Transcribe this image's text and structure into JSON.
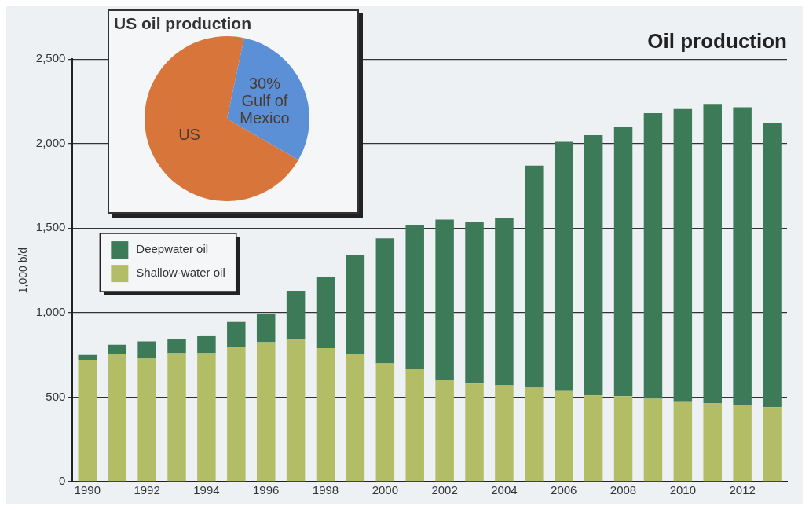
{
  "chart_data": [
    {
      "type": "bar",
      "title": "Oil production",
      "ylabel": "1,000 b/d",
      "stacked": true,
      "grid": "y",
      "legend": "left",
      "categories": [
        "1990",
        null,
        "1992",
        null,
        "1994",
        null,
        "1996",
        null,
        "1998",
        null,
        "2000",
        null,
        "2002",
        null,
        "2004",
        null,
        "2006",
        null,
        "2008",
        null,
        "2010",
        null,
        "2012",
        null
      ],
      "series": [
        {
          "name": "Shallow-water oil",
          "color": "#b3bd66",
          "values": [
            720,
            755,
            735,
            760,
            760,
            795,
            825,
            845,
            790,
            755,
            700,
            665,
            600,
            580,
            570,
            555,
            540,
            510,
            505,
            490,
            475,
            465,
            455,
            440
          ]
        },
        {
          "name": "Deepwater oil",
          "color": "#3d7a58",
          "values": [
            30,
            55,
            95,
            85,
            105,
            150,
            170,
            285,
            420,
            585,
            740,
            855,
            950,
            955,
            990,
            1315,
            1470,
            1540,
            1595,
            1690,
            1730,
            1770,
            1760,
            1680
          ]
        }
      ],
      "ylim": [
        0,
        2500
      ],
      "yticks": [
        0,
        500,
        {
          "value": 1000,
          "label": "1,000"
        },
        {
          "value": 1500,
          "label": "1,500"
        },
        {
          "value": 2000,
          "label": "2,000"
        },
        {
          "value": 2500,
          "label": "2,500"
        }
      ]
    },
    {
      "type": "pie",
      "title": "US oil production",
      "categories": [
        "US",
        "Gulf of Mexico"
      ],
      "values": [
        70,
        30
      ],
      "colors": [
        "#d8753a",
        "#5b8fd6"
      ],
      "value_labels": [
        null,
        "30%"
      ]
    }
  ]
}
